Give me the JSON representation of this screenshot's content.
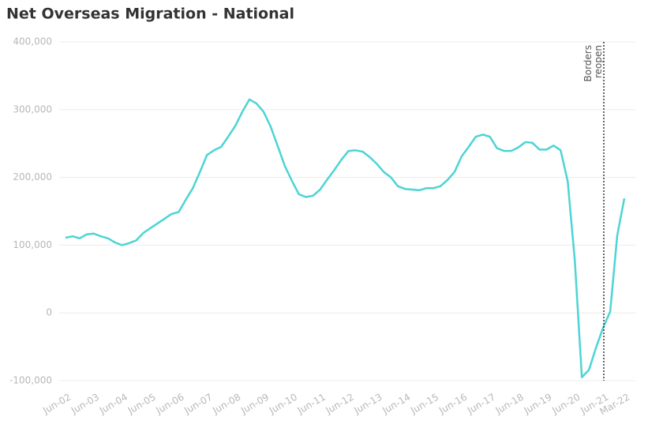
{
  "chart_data": {
    "type": "line",
    "title": "Net Overseas Migration - National",
    "categories": [
      "Jun-02",
      null,
      null,
      null,
      "Jun-03",
      null,
      null,
      null,
      "Jun-04",
      null,
      null,
      null,
      "Jun-05",
      null,
      null,
      null,
      "Jun-06",
      null,
      null,
      null,
      "Jun-07",
      null,
      null,
      null,
      "Jun-08",
      null,
      null,
      null,
      "Jun-09",
      null,
      null,
      null,
      "Jun-10",
      null,
      null,
      null,
      "Jun-11",
      null,
      null,
      null,
      "Jun-12",
      null,
      null,
      null,
      "Jun-13",
      null,
      null,
      null,
      "Jun-14",
      null,
      null,
      null,
      "Jun-15",
      null,
      null,
      null,
      "Jun-16",
      null,
      null,
      null,
      "Jun-17",
      null,
      null,
      null,
      "Jun-18",
      null,
      null,
      null,
      "Jun-19",
      null,
      null,
      null,
      "Jun-20",
      null,
      null,
      null,
      "Jun-21",
      null,
      null,
      "Mar-22"
    ],
    "series": [
      {
        "name": "Net Overseas Migration",
        "color": "#4dd4d4",
        "values": [
          111000,
          113000,
          110000,
          116000,
          117000,
          113000,
          110000,
          104000,
          100000,
          103000,
          107000,
          118000,
          125000,
          132000,
          139000,
          146000,
          149000,
          167000,
          184000,
          208000,
          233000,
          240000,
          245000,
          260000,
          276000,
          297000,
          315000,
          309000,
          297000,
          275000,
          246000,
          217000,
          195000,
          175000,
          171000,
          173000,
          182000,
          197000,
          211000,
          226000,
          239000,
          240000,
          238000,
          230000,
          220000,
          208000,
          200000,
          187000,
          183000,
          182000,
          181000,
          184000,
          184000,
          187000,
          196000,
          208000,
          231000,
          245000,
          260000,
          263000,
          260000,
          243000,
          239000,
          239000,
          244000,
          252000,
          251000,
          241000,
          241000,
          247000,
          240000,
          194000,
          77000,
          -95000,
          -84000,
          -51000,
          -22000,
          2000,
          114000,
          169000
        ]
      }
    ],
    "ylim": [
      -100000,
      400000
    ],
    "yticks": [
      {
        "value": -100000,
        "label": "-100,000"
      },
      0,
      {
        "value": 100000,
        "label": "100,000"
      },
      {
        "value": 200000,
        "label": "200,000"
      },
      {
        "value": 300000,
        "label": "300,000"
      },
      {
        "value": 400000,
        "label": "400,000"
      }
    ],
    "grid": true,
    "annotation": "Borders reopen"
  }
}
